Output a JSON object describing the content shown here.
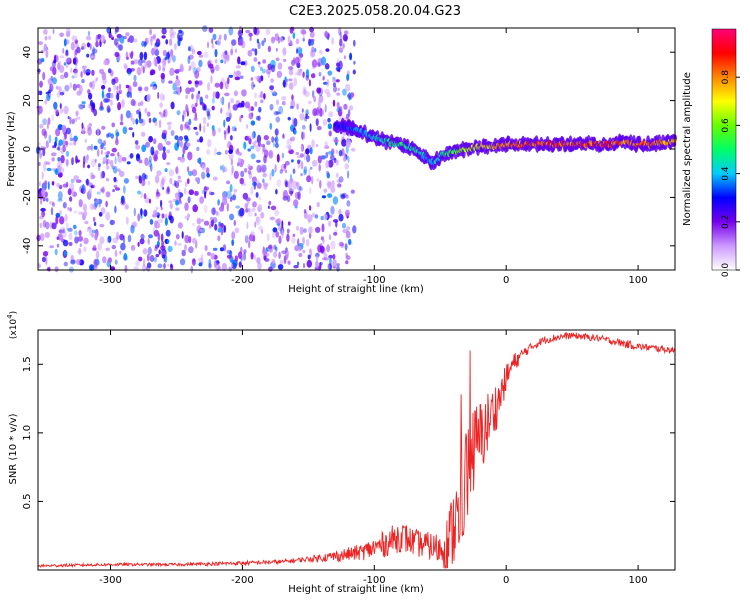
{
  "title": "C2E3.2025.058.20.04.G23",
  "chart_data": [
    {
      "type": "heatmap",
      "xlabel": "Height of straight line (km)",
      "ylabel": "Frequency (Hz)",
      "xlim": [
        -355,
        128
      ],
      "ylim": [
        -50,
        50
      ],
      "x_ticks": [
        -300,
        -200,
        -100,
        0,
        100
      ],
      "x_tick_labels": [
        "-300",
        "-200",
        "-100",
        "0",
        "100"
      ],
      "y_ticks": [
        -40,
        -20,
        0,
        20,
        40
      ],
      "y_tick_labels": [
        "-40",
        "-20",
        "0",
        "20",
        "40"
      ],
      "colorbar": {
        "label": "Normalized spectral amplitude",
        "range": [
          0,
          1
        ],
        "ticks": [
          0.0,
          0.2,
          0.4,
          0.6,
          0.8
        ],
        "tick_labels": [
          "0.0",
          "0.2",
          "0.4",
          "0.6",
          "0.8"
        ],
        "colors": [
          "#ffffff",
          "#cc99ff",
          "#7700ee",
          "#0000ff",
          "#00ccff",
          "#00ff66",
          "#66ff00",
          "#ffff00",
          "#ff8800",
          "#ff0000",
          "#ff0077"
        ]
      },
      "ridge": {
        "x": [
          -130,
          -120,
          -110,
          -100,
          -90,
          -80,
          -70,
          -60,
          -55,
          -50,
          -40,
          -30,
          -20,
          -10,
          0,
          20,
          40,
          60,
          80,
          90,
          100,
          110,
          128
        ],
        "y": [
          10,
          9,
          7,
          5,
          3,
          2,
          0,
          -4,
          -6,
          -3,
          -1,
          0,
          1,
          1,
          2,
          2,
          2,
          2,
          2,
          3,
          2,
          2,
          3
        ],
        "amplitude": [
          0.3,
          0.35,
          0.4,
          0.45,
          0.5,
          0.55,
          0.5,
          0.45,
          0.4,
          0.5,
          0.6,
          0.7,
          0.75,
          0.8,
          0.85,
          0.9,
          0.92,
          0.9,
          0.92,
          0.85,
          0.9,
          0.88,
          0.8
        ]
      },
      "noise_region_x": [
        -355,
        -115
      ]
    },
    {
      "type": "line",
      "xlabel": "Height of straight line (km)",
      "ylabel": "SNR (10 * v/v)",
      "y_multiplier_label": "(x10",
      "y_multiplier_exp": "4",
      "y_multiplier_close": ")",
      "xlim": [
        -355,
        128
      ],
      "ylim": [
        0,
        1.75
      ],
      "x_ticks": [
        -300,
        -200,
        -100,
        0,
        100
      ],
      "x_tick_labels": [
        "-300",
        "-200",
        "-100",
        "0",
        "100"
      ],
      "y_ticks": [
        0.5,
        1.0,
        1.5
      ],
      "y_tick_labels": [
        "0.5",
        "1.0",
        "1.5"
      ],
      "series": [
        {
          "color": "#ee2222",
          "x": [
            -355,
            -300,
            -250,
            -200,
            -170,
            -150,
            -130,
            -110,
            -100,
            -90,
            -80,
            -70,
            -60,
            -50,
            -45,
            -40,
            -35,
            -30,
            -25,
            -20,
            -15,
            -10,
            -5,
            0,
            5,
            10,
            15,
            20,
            25,
            30,
            40,
            50,
            60,
            70,
            80,
            90,
            95,
            100,
            110,
            120,
            128
          ],
          "y": [
            0.03,
            0.04,
            0.04,
            0.05,
            0.06,
            0.08,
            0.1,
            0.13,
            0.16,
            0.2,
            0.25,
            0.2,
            0.18,
            0.15,
            0.2,
            0.3,
            0.45,
            0.7,
            0.85,
            0.95,
            1.05,
            1.15,
            1.25,
            1.4,
            1.5,
            1.55,
            1.6,
            1.63,
            1.66,
            1.68,
            1.7,
            1.71,
            1.7,
            1.69,
            1.67,
            1.65,
            1.64,
            1.63,
            1.62,
            1.61,
            1.6
          ],
          "noise": [
            0.01,
            0.01,
            0.01,
            0.015,
            0.015,
            0.02,
            0.04,
            0.06,
            0.08,
            0.1,
            0.12,
            0.1,
            0.1,
            0.12,
            0.2,
            0.3,
            0.35,
            0.4,
            0.35,
            0.3,
            0.25,
            0.2,
            0.15,
            0.1,
            0.08,
            0.05,
            0.04,
            0.03,
            0.03,
            0.03,
            0.025,
            0.025,
            0.025,
            0.025,
            0.025,
            0.03,
            0.03,
            0.025,
            0.025,
            0.025,
            0.025
          ]
        }
      ]
    }
  ]
}
